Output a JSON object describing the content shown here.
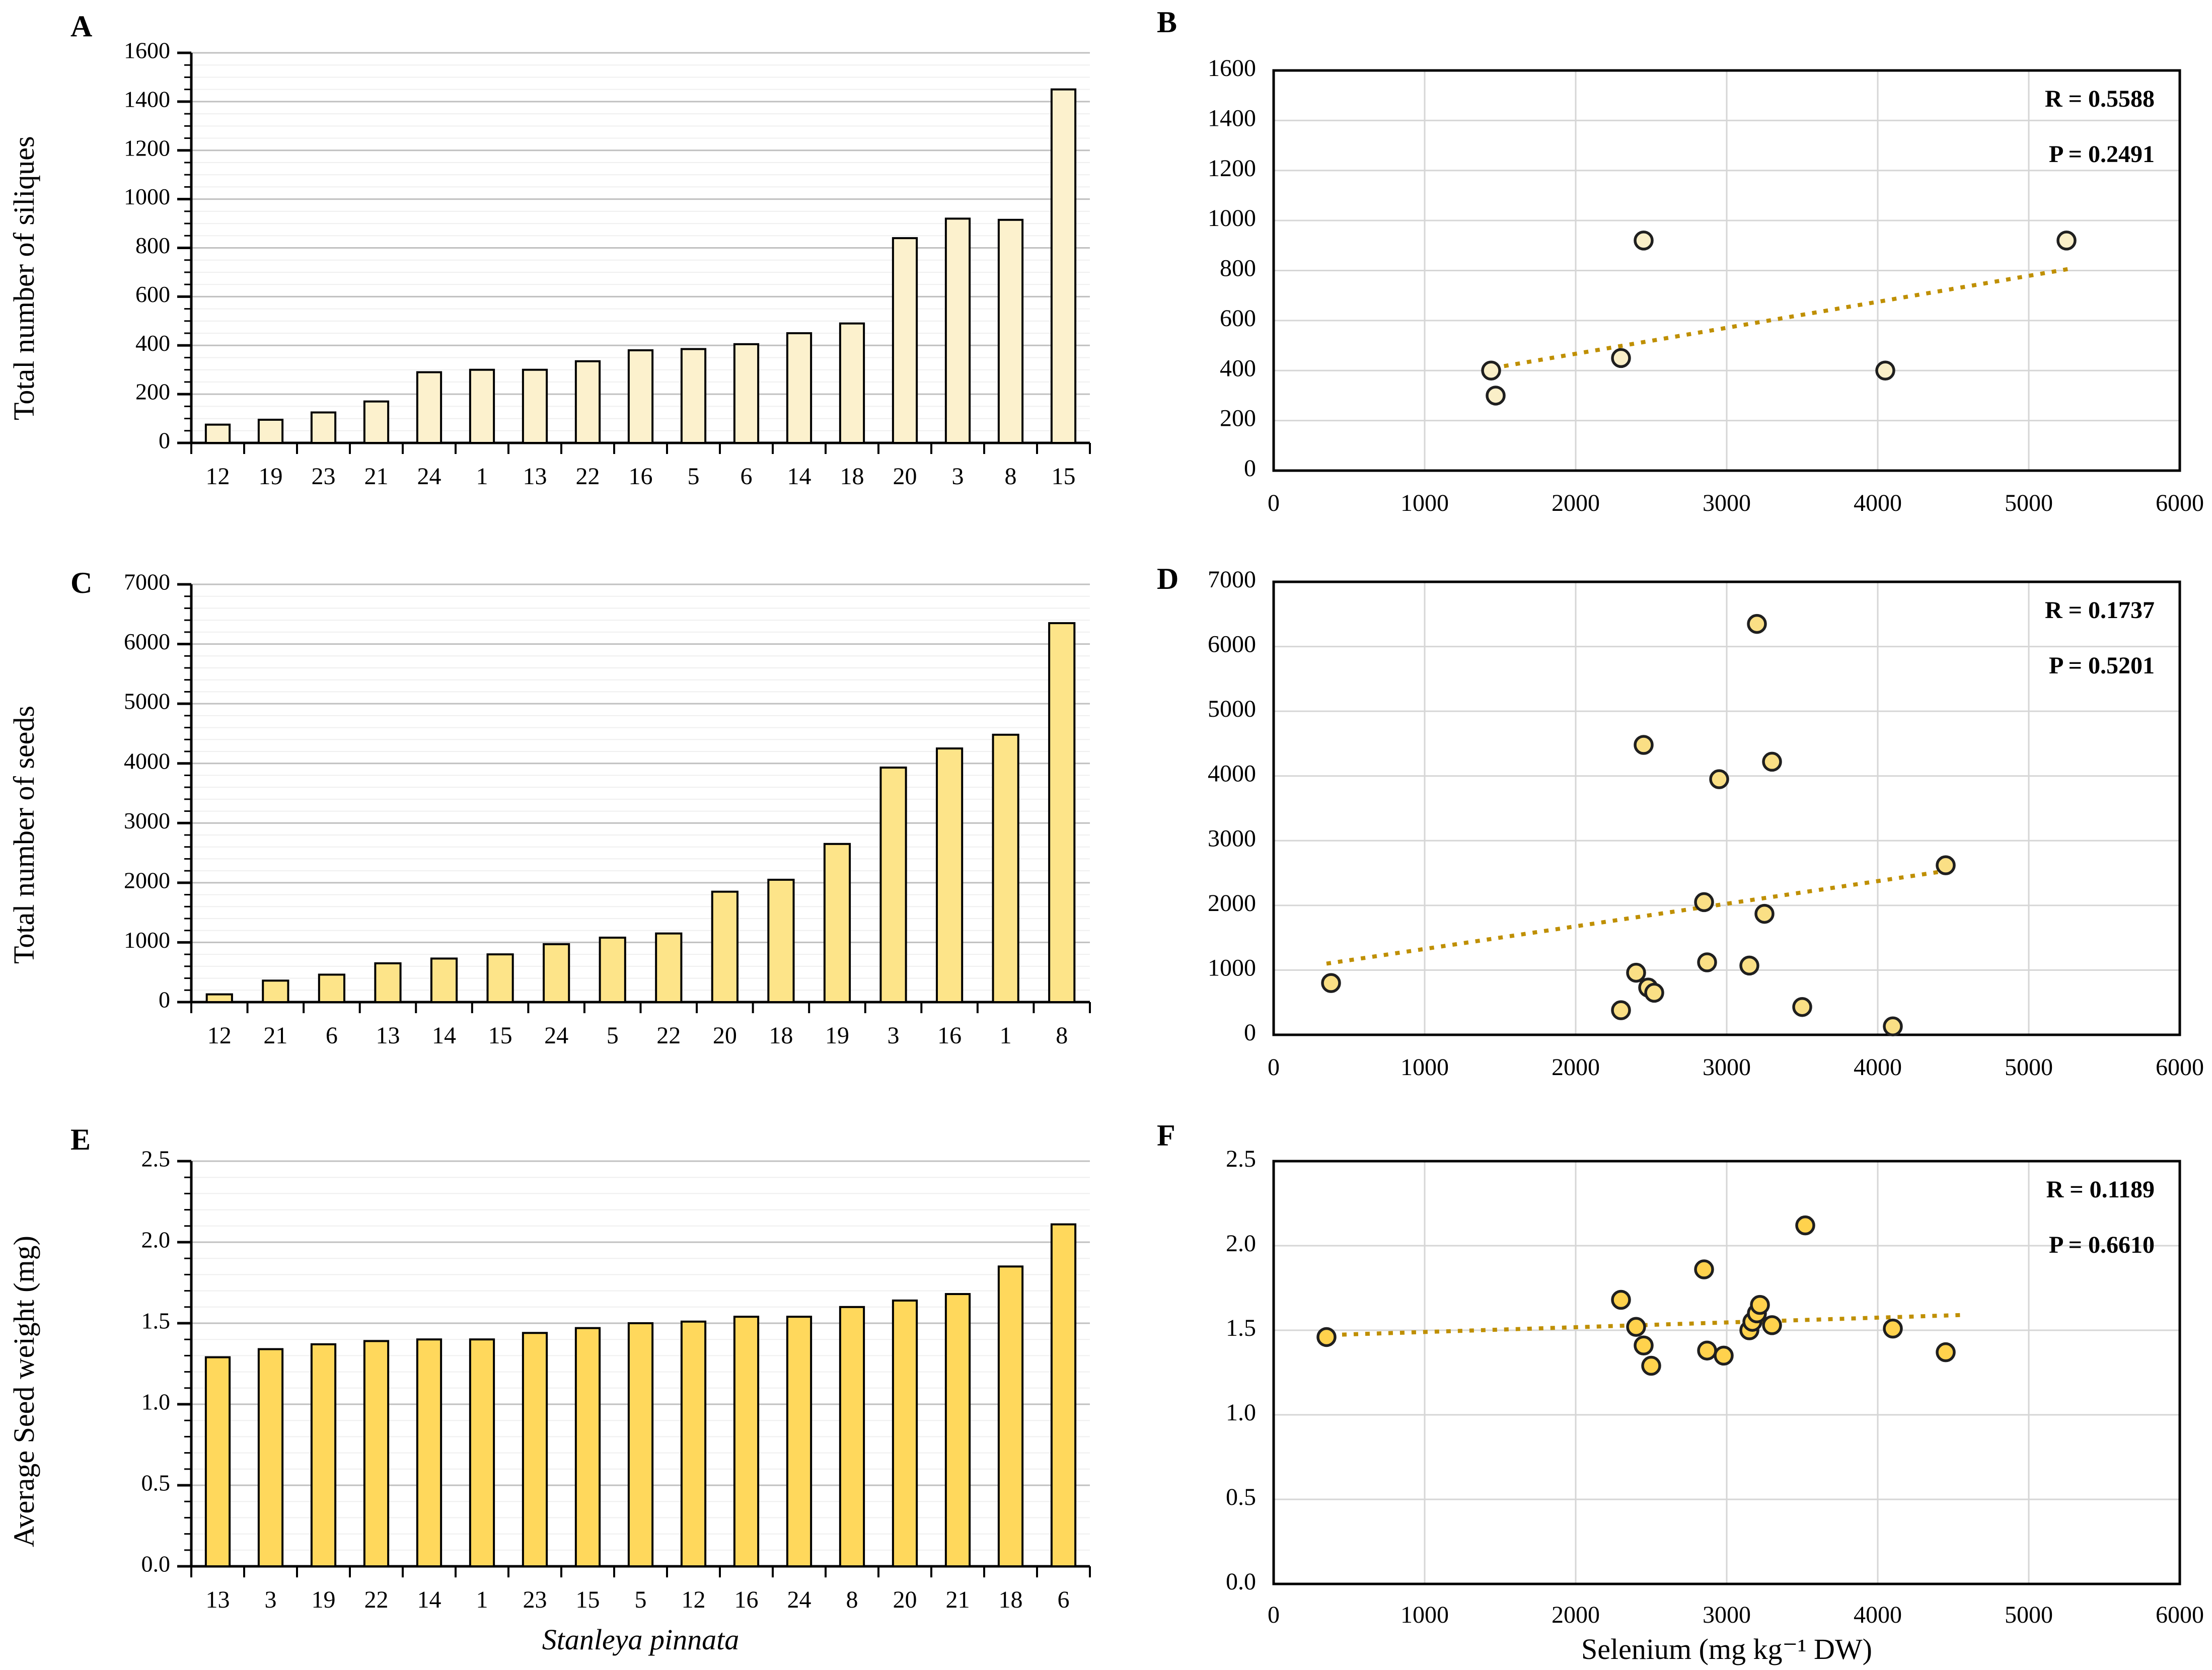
{
  "page": {
    "background": "#FFFFFF"
  },
  "colors": {
    "bar_outline": "#000000",
    "point_outline": "#1F1F1F",
    "trendline": "#BF8F00",
    "grid_major_bar": "#C0C0C0",
    "grid_minor_bar": "#EFEFEF",
    "grid_scatter": "#D6D6D6",
    "axis": "#000000",
    "frame": "#000000"
  },
  "chart_data": [
    {
      "id": "A",
      "type": "bar",
      "panel_letter": "A",
      "ylabel": "Total number of siliques",
      "xlabel": "",
      "categories": [
        "12",
        "19",
        "23",
        "21",
        "24",
        "1",
        "13",
        "22",
        "16",
        "5",
        "6",
        "14",
        "18",
        "20",
        "3",
        "8",
        "15"
      ],
      "values": [
        75,
        95,
        125,
        170,
        290,
        300,
        300,
        335,
        380,
        385,
        405,
        450,
        490,
        840,
        920,
        915,
        1450
      ],
      "ylim": [
        0,
        1600
      ],
      "ytick_step": 200,
      "minor_tick_step": 50,
      "ytick_labels": [
        "0",
        "200",
        "400",
        "600",
        "800",
        "1000",
        "1200",
        "1400",
        "1600"
      ],
      "grid": true,
      "bar_fill": "#FCF1CD"
    },
    {
      "id": "B",
      "type": "scatter",
      "panel_letter": "B",
      "ylabel": "",
      "xlabel": "",
      "r_text": "R = 0.5588",
      "p_text": "P = 0.2491",
      "xlim": [
        0,
        6000
      ],
      "ylim": [
        0,
        1600
      ],
      "xtick_labels": [
        "0",
        "1000",
        "2000",
        "3000",
        "4000",
        "5000",
        "6000"
      ],
      "ytick_labels": [
        "0",
        "200",
        "400",
        "600",
        "800",
        "1000",
        "1200",
        "1400",
        "1600"
      ],
      "points": [
        [
          1440,
          400
        ],
        [
          1470,
          300
        ],
        [
          2300,
          450
        ],
        [
          2450,
          920
        ],
        [
          4050,
          400
        ],
        [
          5250,
          920
        ]
      ],
      "trendline": {
        "x1": 1450,
        "y1": 410,
        "x2": 5300,
        "y2": 810
      },
      "grid": true,
      "point_fill": "#FAEFC8"
    },
    {
      "id": "C",
      "type": "bar",
      "panel_letter": "C",
      "ylabel": "Total number of seeds",
      "xlabel": "",
      "categories": [
        "12",
        "21",
        "6",
        "13",
        "14",
        "15",
        "24",
        "5",
        "22",
        "20",
        "18",
        "19",
        "3",
        "16",
        "1",
        "8"
      ],
      "values": [
        130,
        360,
        460,
        650,
        730,
        800,
        970,
        1080,
        1150,
        1850,
        2050,
        2650,
        3930,
        4250,
        4480,
        6350
      ],
      "ylim": [
        0,
        7000
      ],
      "ytick_step": 1000,
      "minor_tick_step": 200,
      "ytick_labels": [
        "0",
        "1000",
        "2000",
        "3000",
        "4000",
        "5000",
        "6000",
        "7000"
      ],
      "grid": true,
      "bar_fill": "#FDE489"
    },
    {
      "id": "D",
      "type": "scatter",
      "panel_letter": "D",
      "ylabel": "",
      "xlabel": "",
      "r_text": "R = 0.1737",
      "p_text": "P = 0.5201",
      "xlim": [
        0,
        6000
      ],
      "ylim": [
        0,
        7000
      ],
      "xtick_labels": [
        "0",
        "1000",
        "2000",
        "3000",
        "4000",
        "5000",
        "6000"
      ],
      "ytick_labels": [
        "0",
        "1000",
        "2000",
        "3000",
        "4000",
        "5000",
        "6000",
        "7000"
      ],
      "points": [
        [
          380,
          800
        ],
        [
          2300,
          380
        ],
        [
          2400,
          960
        ],
        [
          2450,
          4480
        ],
        [
          2480,
          730
        ],
        [
          2520,
          650
        ],
        [
          2850,
          2050
        ],
        [
          2870,
          1120
        ],
        [
          2950,
          3950
        ],
        [
          3150,
          1070
        ],
        [
          3200,
          6350
        ],
        [
          3250,
          1870
        ],
        [
          3300,
          4220
        ],
        [
          3500,
          430
        ],
        [
          4100,
          130
        ],
        [
          4450,
          2620
        ]
      ],
      "trendline": {
        "x1": 350,
        "y1": 1100,
        "x2": 4500,
        "y2": 2550
      },
      "grid": true,
      "point_fill": "#FADF85"
    },
    {
      "id": "E",
      "type": "bar",
      "panel_letter": "E",
      "ylabel": "Average Seed weight (mg)",
      "xlabel": "Stanleya pinnata",
      "categories": [
        "13",
        "3",
        "19",
        "22",
        "14",
        "1",
        "23",
        "15",
        "5",
        "12",
        "16",
        "24",
        "8",
        "20",
        "21",
        "18",
        "6"
      ],
      "values": [
        1.29,
        1.34,
        1.37,
        1.39,
        1.4,
        1.4,
        1.44,
        1.47,
        1.5,
        1.51,
        1.54,
        1.54,
        1.6,
        1.64,
        1.68,
        1.85,
        2.11
      ],
      "ylim": [
        0,
        2.5
      ],
      "ytick_step": 0.5,
      "minor_tick_step": 0.1,
      "ytick_labels": [
        "0.0",
        "0.5",
        "1.0",
        "1.5",
        "2.0",
        "2.5"
      ],
      "grid": true,
      "bar_fill": "#FFD85C"
    },
    {
      "id": "F",
      "type": "scatter",
      "panel_letter": "F",
      "ylabel": "",
      "xlabel": "Selenium  (mg kg⁻¹ DW)",
      "r_text": "R = 0.1189",
      "p_text": "P = 0.6610",
      "xlim": [
        0,
        6000
      ],
      "ylim": [
        0,
        2.5
      ],
      "xtick_labels": [
        "0",
        "1000",
        "2000",
        "3000",
        "4000",
        "5000",
        "6000"
      ],
      "ytick_labels": [
        "0.0",
        "0.5",
        "1.0",
        "1.5",
        "2.0",
        "2.5"
      ],
      "points": [
        [
          350,
          1.46
        ],
        [
          2300,
          1.68
        ],
        [
          2400,
          1.52
        ],
        [
          2450,
          1.41
        ],
        [
          2500,
          1.29
        ],
        [
          2850,
          1.86
        ],
        [
          2870,
          1.38
        ],
        [
          2980,
          1.35
        ],
        [
          3150,
          1.5
        ],
        [
          3170,
          1.55
        ],
        [
          3200,
          1.6
        ],
        [
          3220,
          1.65
        ],
        [
          3300,
          1.53
        ],
        [
          3520,
          2.12
        ],
        [
          4100,
          1.51
        ],
        [
          4450,
          1.37
        ]
      ],
      "trendline": {
        "x1": 300,
        "y1": 1.47,
        "x2": 4550,
        "y2": 1.59
      },
      "grid": true,
      "point_fill": "#FFD24D"
    }
  ]
}
